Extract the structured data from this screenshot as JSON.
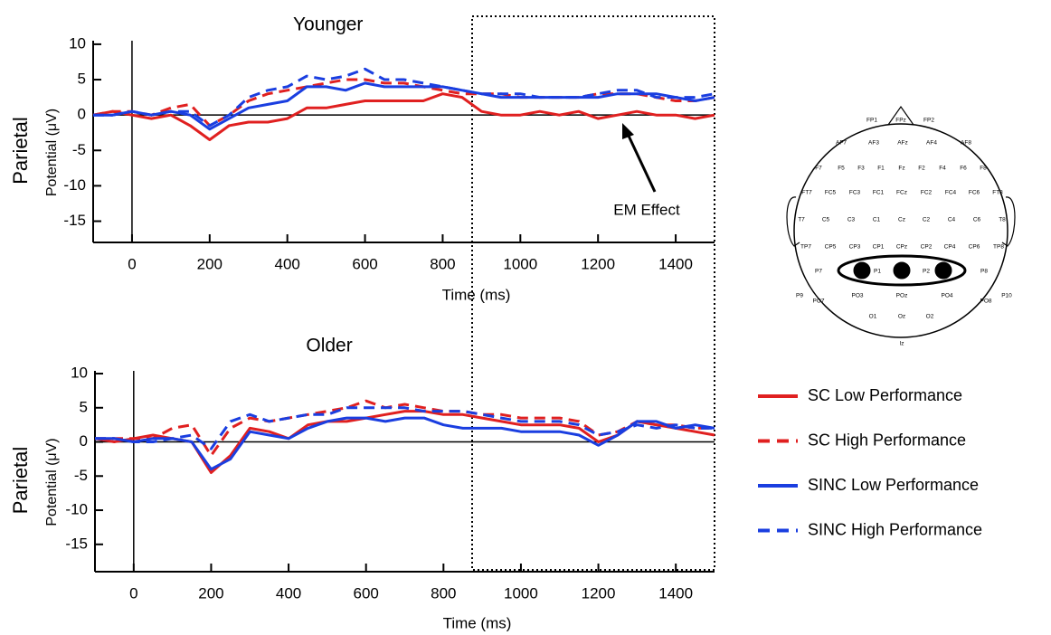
{
  "chart_data": [
    {
      "type": "line",
      "title": "Younger",
      "row_label": "Parietal",
      "x_label": "Time (ms)",
      "y_label": "Potential (μV)",
      "annotation": "EM Effect",
      "xlim": [
        -100,
        1500
      ],
      "ylim": [
        -18,
        10.5
      ],
      "xticks": [
        0,
        200,
        400,
        600,
        800,
        1000,
        1200,
        1400
      ],
      "yticks": [
        -15,
        -10,
        -5,
        0,
        5,
        10
      ],
      "x": [
        -100,
        -50,
        0,
        50,
        100,
        150,
        200,
        250,
        300,
        350,
        400,
        450,
        500,
        550,
        600,
        650,
        700,
        750,
        800,
        850,
        900,
        950,
        1000,
        1050,
        1100,
        1150,
        1200,
        1250,
        1300,
        1350,
        1400,
        1450,
        1500
      ],
      "series": [
        {
          "name": "SC Low Performance",
          "color": "#e02020",
          "dashed": false,
          "values": [
            0,
            0.5,
            0,
            -0.5,
            0,
            -1.5,
            -3.5,
            -1.5,
            -1,
            -1,
            -0.5,
            1,
            1,
            1.5,
            2,
            2,
            2,
            2,
            3,
            2.5,
            0.5,
            0,
            0,
            0.5,
            0,
            0.5,
            -0.5,
            0,
            0.5,
            0,
            0,
            -0.5,
            0
          ]
        },
        {
          "name": "SC High Performance",
          "color": "#e02020",
          "dashed": true,
          "values": [
            0,
            0.5,
            0.5,
            0,
            1,
            1.5,
            -1.5,
            0,
            2,
            3,
            3.5,
            4,
            4.5,
            5,
            5,
            4.5,
            4.5,
            4,
            3.5,
            3,
            3,
            3,
            2.5,
            2.5,
            2.5,
            2.5,
            3,
            3,
            3,
            2.5,
            2,
            2,
            2.5
          ]
        },
        {
          "name": "SINC Low Performance",
          "color": "#1a3ee0",
          "dashed": false,
          "values": [
            0,
            0,
            0.5,
            0,
            0.5,
            0,
            -2,
            -0.5,
            1,
            1.5,
            2,
            4,
            4,
            3.5,
            4.5,
            4,
            4,
            4,
            4,
            3.5,
            3,
            2.5,
            2.5,
            2.5,
            2.5,
            2.5,
            2.5,
            3,
            3,
            3,
            2.5,
            2,
            2.5
          ]
        },
        {
          "name": "SINC High Performance",
          "color": "#1a3ee0",
          "dashed": true,
          "values": [
            0,
            0,
            0.5,
            0,
            0.5,
            0.5,
            -1.5,
            0,
            2.5,
            3.5,
            4,
            5.5,
            5,
            5.5,
            6.5,
            5,
            5,
            4.5,
            4,
            3.5,
            3,
            3,
            3,
            2.5,
            2.5,
            2.5,
            3,
            3.5,
            3.5,
            2.5,
            2.5,
            2.5,
            3
          ]
        }
      ]
    },
    {
      "type": "line",
      "title": "Older",
      "row_label": "Parietal",
      "x_label": "Time (ms)",
      "y_label": "Potential (μV)",
      "xlim": [
        -100,
        1500
      ],
      "ylim": [
        -19,
        10.4
      ],
      "xticks": [
        0,
        200,
        400,
        600,
        800,
        1000,
        1200,
        1400
      ],
      "yticks": [
        -15,
        -10,
        -5,
        0,
        5,
        10
      ],
      "x": [
        -100,
        -50,
        0,
        50,
        100,
        150,
        200,
        250,
        300,
        350,
        400,
        450,
        500,
        550,
        600,
        650,
        700,
        750,
        800,
        850,
        900,
        950,
        1000,
        1050,
        1100,
        1150,
        1200,
        1250,
        1300,
        1350,
        1400,
        1450,
        1500
      ],
      "series": [
        {
          "color": "#e02020",
          "dashed": false,
          "values": [
            0.5,
            0,
            0.5,
            1,
            0.5,
            0,
            -4.5,
            -2,
            2,
            1.5,
            0.5,
            2.5,
            3,
            3,
            3.5,
            4,
            4.5,
            4.5,
            4,
            4,
            3.5,
            3,
            2.5,
            2.5,
            2.5,
            2,
            0,
            1,
            3,
            2.5,
            2,
            1.5,
            1
          ]
        },
        {
          "color": "#e02020",
          "dashed": true,
          "values": [
            0.5,
            0.5,
            0.5,
            0.5,
            2,
            2.5,
            -2,
            2,
            3.5,
            3,
            3.5,
            4,
            4.5,
            5,
            6,
            5,
            5.5,
            5,
            4.5,
            4.5,
            4,
            4,
            3.5,
            3.5,
            3.5,
            3,
            1,
            1.5,
            3,
            2.5,
            2.5,
            2,
            2
          ]
        },
        {
          "color": "#1a3ee0",
          "dashed": false,
          "values": [
            0.5,
            0.5,
            0,
            0.5,
            0.5,
            0,
            -4,
            -2.5,
            1.5,
            1,
            0.5,
            2,
            3,
            3.5,
            3.5,
            3,
            3.5,
            3.5,
            2.5,
            2,
            2,
            2,
            1.5,
            1.5,
            1.5,
            1,
            -0.5,
            1,
            3,
            3,
            2,
            2.5,
            2
          ]
        },
        {
          "color": "#1a3ee0",
          "dashed": true,
          "values": [
            0.5,
            0.5,
            0,
            0,
            0.5,
            1,
            -1,
            3,
            4,
            3,
            3.5,
            4,
            4,
            5,
            5,
            5,
            5,
            4.5,
            4.5,
            4.5,
            4,
            3.5,
            3,
            3,
            3,
            2.5,
            1,
            1.5,
            2.5,
            2,
            2.5,
            2,
            2
          ]
        }
      ]
    }
  ],
  "head_map": {
    "rows": [
      [
        "FP1",
        "FPz",
        "FP2"
      ],
      [
        "AF7",
        "AF3",
        "AFz",
        "AF4",
        "AF8"
      ],
      [
        "F7",
        "F5",
        "F3",
        "F1",
        "Fz",
        "F2",
        "F4",
        "F6",
        "F8"
      ],
      [
        "FT7",
        "FC5",
        "FC3",
        "FC1",
        "FCz",
        "FC2",
        "FC4",
        "FC6",
        "FT8"
      ],
      [
        "T7",
        "C5",
        "C3",
        "C1",
        "Cz",
        "C2",
        "C4",
        "C6",
        "T8"
      ],
      [
        "TP7",
        "CP5",
        "CP3",
        "CP1",
        "CPz",
        "CP2",
        "CP4",
        "CP6",
        "TP8"
      ],
      [
        "P7",
        "P1",
        "P2",
        "P8"
      ],
      [
        "P9",
        "PO7",
        "PO3",
        "POz",
        "PO4",
        "PO8",
        "P10"
      ],
      [
        "O1",
        "Oz",
        "O2"
      ],
      [
        "Iz"
      ]
    ]
  }
}
